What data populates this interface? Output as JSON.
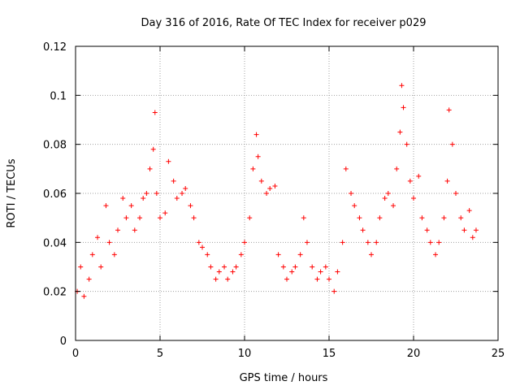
{
  "chart_data": {
    "type": "scatter",
    "title": "Day 316 of 2016, Rate Of TEC Index for receiver p029",
    "xlabel": "GPS time / hours",
    "ylabel": "ROTI / TECUs",
    "xlim": [
      0,
      25
    ],
    "ylim": [
      0,
      0.12
    ],
    "x_ticks": [
      0,
      5,
      10,
      15,
      20,
      25
    ],
    "y_ticks": [
      0,
      0.02,
      0.04,
      0.06,
      0.08,
      0.1,
      0.12
    ],
    "x_tick_labels": [
      "0",
      "5",
      "10",
      "15",
      "20",
      "25"
    ],
    "y_tick_labels": [
      "0",
      "0.02",
      "0.04",
      "0.06",
      "0.08",
      "0.1",
      "0.12"
    ],
    "grid": true,
    "legend": "none",
    "marker": "plus",
    "color": "#ff0000",
    "series": [
      {
        "x": [
          0.1,
          0.3,
          0.5,
          0.8,
          1.0,
          1.3,
          1.5,
          1.8,
          2.0,
          2.3,
          2.5,
          2.8,
          3.0,
          3.3,
          3.5,
          3.8,
          4.0,
          4.2,
          4.4,
          4.6,
          4.7,
          4.8,
          5.0,
          5.3,
          5.5,
          5.8,
          6.0,
          6.3,
          6.5,
          6.8,
          7.0,
          7.3,
          7.5,
          7.8,
          8.0,
          8.3,
          8.5,
          8.8,
          9.0,
          9.3,
          9.5,
          9.8,
          10.0,
          10.3,
          10.5,
          10.7,
          10.8,
          11.0,
          11.3,
          11.5,
          11.8,
          12.0,
          12.3,
          12.5,
          12.8,
          13.0,
          13.3,
          13.5,
          13.7,
          14.0,
          14.3,
          14.5,
          14.8,
          15.0,
          15.3,
          15.5,
          15.8,
          16.0,
          16.3,
          16.5,
          16.8,
          17.0,
          17.3,
          17.5,
          17.8,
          18.0,
          18.3,
          18.5,
          18.8,
          19.0,
          19.2,
          19.3,
          19.4,
          19.6,
          19.8,
          20.0,
          20.3,
          20.5,
          20.8,
          21.0,
          21.3,
          21.5,
          21.8,
          22.0,
          22.1,
          22.3,
          22.5,
          22.8,
          23.0,
          23.3,
          23.5,
          23.7
        ],
        "y": [
          0.02,
          0.03,
          0.018,
          0.025,
          0.035,
          0.042,
          0.03,
          0.055,
          0.04,
          0.035,
          0.045,
          0.058,
          0.05,
          0.055,
          0.045,
          0.05,
          0.058,
          0.06,
          0.07,
          0.078,
          0.093,
          0.06,
          0.05,
          0.052,
          0.073,
          0.065,
          0.058,
          0.06,
          0.062,
          0.055,
          0.05,
          0.04,
          0.038,
          0.035,
          0.03,
          0.025,
          0.028,
          0.03,
          0.025,
          0.028,
          0.03,
          0.035,
          0.04,
          0.05,
          0.07,
          0.084,
          0.075,
          0.065,
          0.06,
          0.062,
          0.063,
          0.035,
          0.03,
          0.025,
          0.028,
          0.03,
          0.035,
          0.05,
          0.04,
          0.03,
          0.025,
          0.028,
          0.03,
          0.025,
          0.02,
          0.028,
          0.04,
          0.07,
          0.06,
          0.055,
          0.05,
          0.045,
          0.04,
          0.035,
          0.04,
          0.05,
          0.058,
          0.06,
          0.055,
          0.07,
          0.085,
          0.104,
          0.095,
          0.08,
          0.065,
          0.058,
          0.067,
          0.05,
          0.045,
          0.04,
          0.035,
          0.04,
          0.05,
          0.065,
          0.094,
          0.08,
          0.06,
          0.05,
          0.045,
          0.053,
          0.042,
          0.045
        ]
      }
    ]
  }
}
